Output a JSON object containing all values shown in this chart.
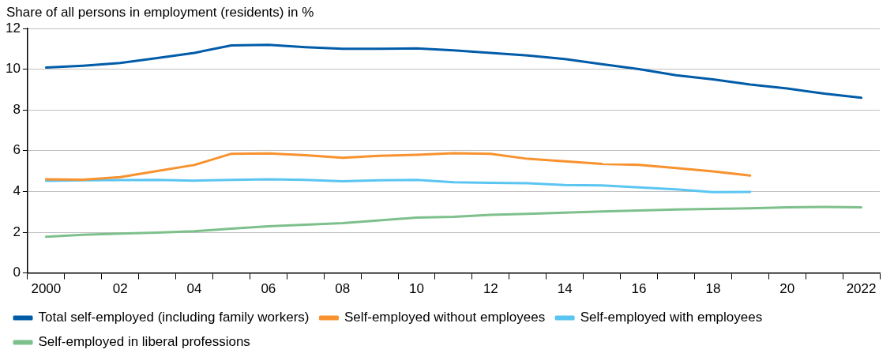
{
  "chart_data": {
    "type": "line",
    "ylabel": "Share of all persons in employment (residents) in %",
    "categories": [
      "2000",
      null,
      "02",
      null,
      "04",
      null,
      "06",
      null,
      "08",
      null,
      "10",
      null,
      "12",
      null,
      "14",
      null,
      "16",
      null,
      "18",
      null,
      "20",
      null,
      "2022"
    ],
    "series": [
      {
        "name": "Total self-employed (including family workers)",
        "color": "#005ca9",
        "values": [
          10.08,
          10.17,
          10.3,
          10.55,
          10.8,
          11.17,
          11.2,
          11.08,
          11.0,
          11.0,
          11.02,
          10.92,
          10.8,
          10.67,
          10.5,
          10.25,
          10.0,
          9.7,
          9.5,
          9.25,
          9.05,
          8.8,
          8.6
        ]
      },
      {
        "name": "Self-employed without employees",
        "color": "#f7922e",
        "values": [
          4.6,
          4.58,
          4.7,
          5.0,
          5.3,
          5.85,
          5.87,
          5.78,
          5.65,
          5.75,
          5.8,
          5.88,
          5.85,
          5.6,
          5.48,
          5.35,
          5.3,
          5.15,
          4.98,
          4.78,
          null,
          null,
          null
        ]
      },
      {
        "name": "Self-employed with employees",
        "color": "#5bc5f2",
        "values": [
          4.52,
          4.55,
          4.56,
          4.57,
          4.53,
          4.57,
          4.6,
          4.57,
          4.5,
          4.55,
          4.57,
          4.45,
          4.42,
          4.4,
          4.32,
          4.3,
          4.2,
          4.1,
          3.97,
          3.98,
          null,
          null,
          null
        ]
      },
      {
        "name": "Self-employed in liberal professions",
        "color": "#7dc08b",
        "values": [
          1.78,
          1.87,
          1.93,
          1.98,
          2.05,
          2.17,
          2.29,
          2.37,
          2.45,
          2.58,
          2.72,
          2.76,
          2.85,
          2.9,
          2.96,
          3.02,
          3.07,
          3.11,
          3.14,
          3.17,
          3.22,
          3.24,
          3.22
        ]
      }
    ],
    "ylim": [
      0,
      12
    ],
    "yticks": [
      0,
      2,
      4,
      6,
      8,
      10,
      12
    ],
    "grid": "y",
    "legend": "bottom",
    "marker": "none",
    "line_style": "solid"
  }
}
